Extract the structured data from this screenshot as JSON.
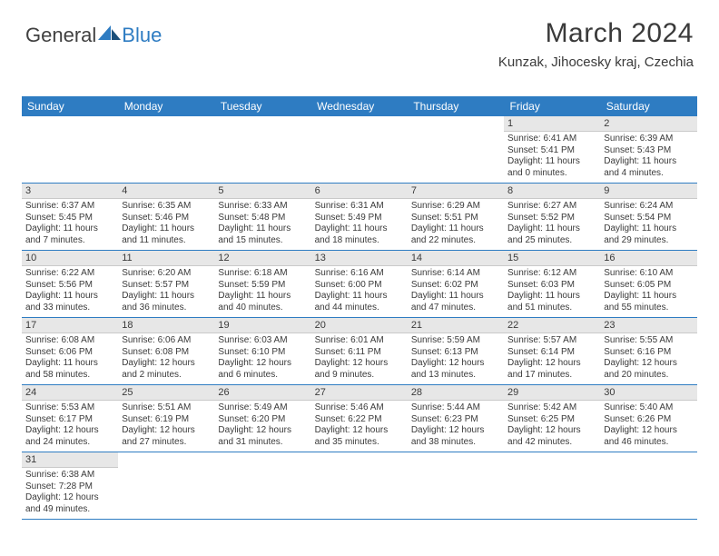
{
  "brand": {
    "part1": "General",
    "part2": "Blue"
  },
  "title": "March 2024",
  "location": "Kunzak, Jihocesky kraj, Czechia",
  "colors": {
    "header_bg": "#2e7cc2",
    "header_text": "#ffffff",
    "daynum_bg": "#e7e7e7",
    "row_divider": "#2e7cc2",
    "text": "#3a3a3a",
    "page_bg": "#ffffff"
  },
  "typography": {
    "title_fontsize": 30,
    "location_fontsize": 15,
    "weekday_fontsize": 12,
    "cell_fontsize": 10
  },
  "weekdays": [
    "Sunday",
    "Monday",
    "Tuesday",
    "Wednesday",
    "Thursday",
    "Friday",
    "Saturday"
  ],
  "weeks": [
    [
      null,
      null,
      null,
      null,
      null,
      {
        "d": "1",
        "sr": "Sunrise: 6:41 AM",
        "ss": "Sunset: 5:41 PM",
        "dl1": "Daylight: 11 hours",
        "dl2": "and 0 minutes."
      },
      {
        "d": "2",
        "sr": "Sunrise: 6:39 AM",
        "ss": "Sunset: 5:43 PM",
        "dl1": "Daylight: 11 hours",
        "dl2": "and 4 minutes."
      }
    ],
    [
      {
        "d": "3",
        "sr": "Sunrise: 6:37 AM",
        "ss": "Sunset: 5:45 PM",
        "dl1": "Daylight: 11 hours",
        "dl2": "and 7 minutes."
      },
      {
        "d": "4",
        "sr": "Sunrise: 6:35 AM",
        "ss": "Sunset: 5:46 PM",
        "dl1": "Daylight: 11 hours",
        "dl2": "and 11 minutes."
      },
      {
        "d": "5",
        "sr": "Sunrise: 6:33 AM",
        "ss": "Sunset: 5:48 PM",
        "dl1": "Daylight: 11 hours",
        "dl2": "and 15 minutes."
      },
      {
        "d": "6",
        "sr": "Sunrise: 6:31 AM",
        "ss": "Sunset: 5:49 PM",
        "dl1": "Daylight: 11 hours",
        "dl2": "and 18 minutes."
      },
      {
        "d": "7",
        "sr": "Sunrise: 6:29 AM",
        "ss": "Sunset: 5:51 PM",
        "dl1": "Daylight: 11 hours",
        "dl2": "and 22 minutes."
      },
      {
        "d": "8",
        "sr": "Sunrise: 6:27 AM",
        "ss": "Sunset: 5:52 PM",
        "dl1": "Daylight: 11 hours",
        "dl2": "and 25 minutes."
      },
      {
        "d": "9",
        "sr": "Sunrise: 6:24 AM",
        "ss": "Sunset: 5:54 PM",
        "dl1": "Daylight: 11 hours",
        "dl2": "and 29 minutes."
      }
    ],
    [
      {
        "d": "10",
        "sr": "Sunrise: 6:22 AM",
        "ss": "Sunset: 5:56 PM",
        "dl1": "Daylight: 11 hours",
        "dl2": "and 33 minutes."
      },
      {
        "d": "11",
        "sr": "Sunrise: 6:20 AM",
        "ss": "Sunset: 5:57 PM",
        "dl1": "Daylight: 11 hours",
        "dl2": "and 36 minutes."
      },
      {
        "d": "12",
        "sr": "Sunrise: 6:18 AM",
        "ss": "Sunset: 5:59 PM",
        "dl1": "Daylight: 11 hours",
        "dl2": "and 40 minutes."
      },
      {
        "d": "13",
        "sr": "Sunrise: 6:16 AM",
        "ss": "Sunset: 6:00 PM",
        "dl1": "Daylight: 11 hours",
        "dl2": "and 44 minutes."
      },
      {
        "d": "14",
        "sr": "Sunrise: 6:14 AM",
        "ss": "Sunset: 6:02 PM",
        "dl1": "Daylight: 11 hours",
        "dl2": "and 47 minutes."
      },
      {
        "d": "15",
        "sr": "Sunrise: 6:12 AM",
        "ss": "Sunset: 6:03 PM",
        "dl1": "Daylight: 11 hours",
        "dl2": "and 51 minutes."
      },
      {
        "d": "16",
        "sr": "Sunrise: 6:10 AM",
        "ss": "Sunset: 6:05 PM",
        "dl1": "Daylight: 11 hours",
        "dl2": "and 55 minutes."
      }
    ],
    [
      {
        "d": "17",
        "sr": "Sunrise: 6:08 AM",
        "ss": "Sunset: 6:06 PM",
        "dl1": "Daylight: 11 hours",
        "dl2": "and 58 minutes."
      },
      {
        "d": "18",
        "sr": "Sunrise: 6:06 AM",
        "ss": "Sunset: 6:08 PM",
        "dl1": "Daylight: 12 hours",
        "dl2": "and 2 minutes."
      },
      {
        "d": "19",
        "sr": "Sunrise: 6:03 AM",
        "ss": "Sunset: 6:10 PM",
        "dl1": "Daylight: 12 hours",
        "dl2": "and 6 minutes."
      },
      {
        "d": "20",
        "sr": "Sunrise: 6:01 AM",
        "ss": "Sunset: 6:11 PM",
        "dl1": "Daylight: 12 hours",
        "dl2": "and 9 minutes."
      },
      {
        "d": "21",
        "sr": "Sunrise: 5:59 AM",
        "ss": "Sunset: 6:13 PM",
        "dl1": "Daylight: 12 hours",
        "dl2": "and 13 minutes."
      },
      {
        "d": "22",
        "sr": "Sunrise: 5:57 AM",
        "ss": "Sunset: 6:14 PM",
        "dl1": "Daylight: 12 hours",
        "dl2": "and 17 minutes."
      },
      {
        "d": "23",
        "sr": "Sunrise: 5:55 AM",
        "ss": "Sunset: 6:16 PM",
        "dl1": "Daylight: 12 hours",
        "dl2": "and 20 minutes."
      }
    ],
    [
      {
        "d": "24",
        "sr": "Sunrise: 5:53 AM",
        "ss": "Sunset: 6:17 PM",
        "dl1": "Daylight: 12 hours",
        "dl2": "and 24 minutes."
      },
      {
        "d": "25",
        "sr": "Sunrise: 5:51 AM",
        "ss": "Sunset: 6:19 PM",
        "dl1": "Daylight: 12 hours",
        "dl2": "and 27 minutes."
      },
      {
        "d": "26",
        "sr": "Sunrise: 5:49 AM",
        "ss": "Sunset: 6:20 PM",
        "dl1": "Daylight: 12 hours",
        "dl2": "and 31 minutes."
      },
      {
        "d": "27",
        "sr": "Sunrise: 5:46 AM",
        "ss": "Sunset: 6:22 PM",
        "dl1": "Daylight: 12 hours",
        "dl2": "and 35 minutes."
      },
      {
        "d": "28",
        "sr": "Sunrise: 5:44 AM",
        "ss": "Sunset: 6:23 PM",
        "dl1": "Daylight: 12 hours",
        "dl2": "and 38 minutes."
      },
      {
        "d": "29",
        "sr": "Sunrise: 5:42 AM",
        "ss": "Sunset: 6:25 PM",
        "dl1": "Daylight: 12 hours",
        "dl2": "and 42 minutes."
      },
      {
        "d": "30",
        "sr": "Sunrise: 5:40 AM",
        "ss": "Sunset: 6:26 PM",
        "dl1": "Daylight: 12 hours",
        "dl2": "and 46 minutes."
      }
    ],
    [
      {
        "d": "31",
        "sr": "Sunrise: 6:38 AM",
        "ss": "Sunset: 7:28 PM",
        "dl1": "Daylight: 12 hours",
        "dl2": "and 49 minutes."
      },
      null,
      null,
      null,
      null,
      null,
      null
    ]
  ]
}
